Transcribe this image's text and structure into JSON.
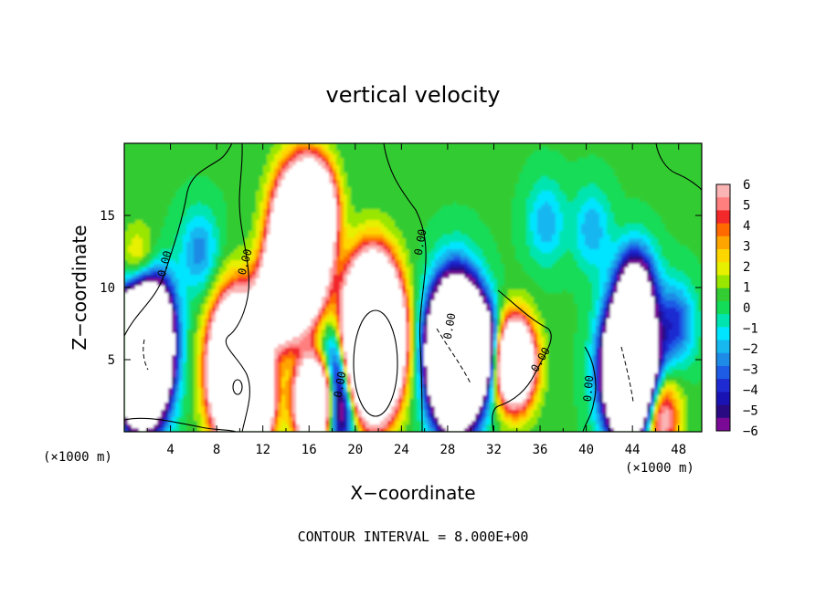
{
  "chart_data": {
    "type": "heatmap",
    "title": "vertical velocity",
    "xlabel": "X−coordinate",
    "ylabel": "Z−coordinate",
    "x_unit_label": "(×1000 m)",
    "y_unit_label": "(×1000 m)",
    "x_ticks": [
      "4",
      "8",
      "12",
      "16",
      "20",
      "24",
      "28",
      "32",
      "36",
      "40",
      "44",
      "48"
    ],
    "x_tick_values": [
      4,
      8,
      12,
      16,
      20,
      24,
      28,
      32,
      36,
      40,
      44,
      48
    ],
    "y_ticks": [
      "5",
      "10",
      "15"
    ],
    "y_tick_values": [
      5,
      10,
      15
    ],
    "xlim": [
      0,
      50
    ],
    "ylim": [
      0,
      20
    ],
    "colorbar": {
      "labels": [
        "6",
        "5",
        "4",
        "3",
        "2",
        "1",
        "0",
        "−1",
        "−2",
        "−3",
        "−4",
        "−5",
        "−6"
      ],
      "colors": [
        "#fbb4b4",
        "#ff7f7f",
        "#f2282a",
        "#ff6a00",
        "#ffa500",
        "#ffd700",
        "#e6f000",
        "#99e600",
        "#33cc33",
        "#12dc58",
        "#00e5b0",
        "#00e5ff",
        "#17b7f0",
        "#1e8be6",
        "#1e5ce6",
        "#1e2bd2",
        "#1a13b4",
        "#2a0a82",
        "#7a0a96"
      ]
    },
    "contour_interval_label": "CONTOUR INTERVAL = 8.000E+00",
    "contour_labels": [
      "0.00",
      "0.00",
      "0.00",
      "0.00",
      "0.00",
      "0.00",
      "0.00"
    ],
    "features": [
      {
        "x": 21.5,
        "z": 6.5,
        "w": 50
      },
      {
        "x": 15.2,
        "z": 12.8,
        "w": 34
      },
      {
        "x": 16.5,
        "z": 15.5,
        "w": 14
      },
      {
        "x": 13.2,
        "z": 9.2,
        "w": 14
      },
      {
        "x": 9.8,
        "z": 4.3,
        "w": 32
      },
      {
        "x": 11.0,
        "z": 2.2,
        "w": 18
      },
      {
        "x": 16.6,
        "z": 2.1,
        "w": 22
      },
      {
        "x": 33.8,
        "z": 4.8,
        "w": 18
      },
      {
        "x": 46.3,
        "z": 1.1,
        "w": 8
      },
      {
        "x": 1.3,
        "z": 10.8,
        "w": 6
      },
      {
        "x": 1.6,
        "z": 5.6,
        "w": -40
      },
      {
        "x": 28.7,
        "z": 5.4,
        "w": -40
      },
      {
        "x": 43.8,
        "z": 4.3,
        "w": -32
      },
      {
        "x": 44.3,
        "z": 10.0,
        "w": -8
      },
      {
        "x": 18.4,
        "z": 4.7,
        "w": -7
      },
      {
        "x": 30.7,
        "z": 6.0,
        "w": -10
      },
      {
        "x": 6.5,
        "z": 12.5,
        "w": -3
      },
      {
        "x": 40.5,
        "z": 14.0,
        "w": -2.5
      },
      {
        "x": 36.5,
        "z": 14.5,
        "w": -2.5
      },
      {
        "x": 47.8,
        "z": 7.5,
        "w": -4
      },
      {
        "x": 3.0,
        "z": 8.5,
        "w": -2.5
      },
      {
        "x": 18.4,
        "z": 1.5,
        "w": -10
      }
    ]
  }
}
